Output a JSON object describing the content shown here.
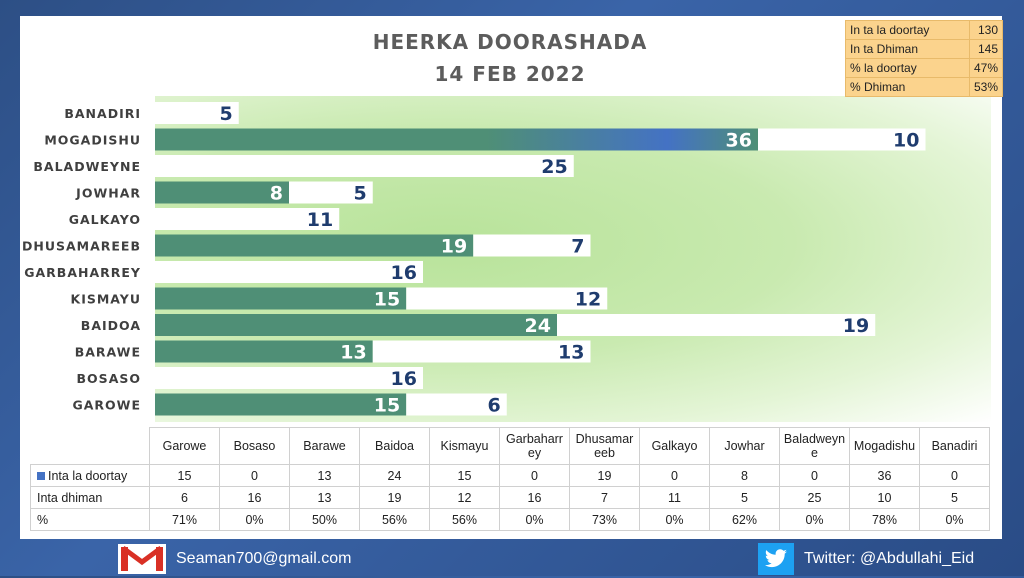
{
  "title_line1": "HEERKA DOORASHADA",
  "title_line2": "14 FEB 2022",
  "summary": [
    {
      "label": "In ta la doortay",
      "value": "130"
    },
    {
      "label": "In ta Dhiman",
      "value": "145"
    },
    {
      "label": "% la doortay",
      "value": "47%"
    },
    {
      "label": "% Dhiman",
      "value": "53%"
    }
  ],
  "chart_data": {
    "type": "bar",
    "orientation": "horizontal",
    "stacked": true,
    "categories": [
      "BANADIRI",
      "MOGADISHU",
      "BALADWEYNE",
      "JOWHAR",
      "GALKAYO",
      "DHUSAMAREEB",
      "GARBAHARREY",
      "KISMAYU",
      "BAIDOA",
      "BARAWE",
      "BOSASO",
      "GAROWE"
    ],
    "series": [
      {
        "name": "Inta la doortay",
        "color": "#4f8f76",
        "values": [
          0,
          36,
          0,
          8,
          0,
          19,
          0,
          15,
          24,
          13,
          0,
          15
        ]
      },
      {
        "name": "Inta dhiman",
        "color": "#ffffff",
        "values": [
          5,
          10,
          25,
          5,
          11,
          7,
          16,
          12,
          19,
          13,
          16,
          6
        ]
      }
    ],
    "xlim": [
      0,
      50
    ],
    "grid": false
  },
  "table": {
    "columns": [
      "Garowe",
      "Bosaso",
      "Barawe",
      "Baidoa",
      "Kismayu",
      "Garbaharr ey",
      "Dhusamar eeb",
      "Galkayo",
      "Jowhar",
      "Baladweyn e",
      "Mogadishu",
      "Banadiri"
    ],
    "rows": [
      {
        "label": "Inta la doortay",
        "values": [
          "15",
          "0",
          "13",
          "24",
          "15",
          "0",
          "19",
          "0",
          "8",
          "0",
          "36",
          "0"
        ]
      },
      {
        "label": "Inta dhiman",
        "values": [
          "6",
          "16",
          "13",
          "19",
          "12",
          "16",
          "7",
          "11",
          "5",
          "25",
          "10",
          "5"
        ]
      },
      {
        "label": "%",
        "values": [
          "71%",
          "0%",
          "50%",
          "56%",
          "56%",
          "0%",
          "73%",
          "0%",
          "62%",
          "0%",
          "78%",
          "0%"
        ]
      }
    ]
  },
  "footer": {
    "email": "Seaman700@gmail.com",
    "email_icon": "gmail-icon",
    "twitter": "Twitter: @Abdullahi_Eid",
    "twitter_icon": "twitter-bird-icon"
  }
}
